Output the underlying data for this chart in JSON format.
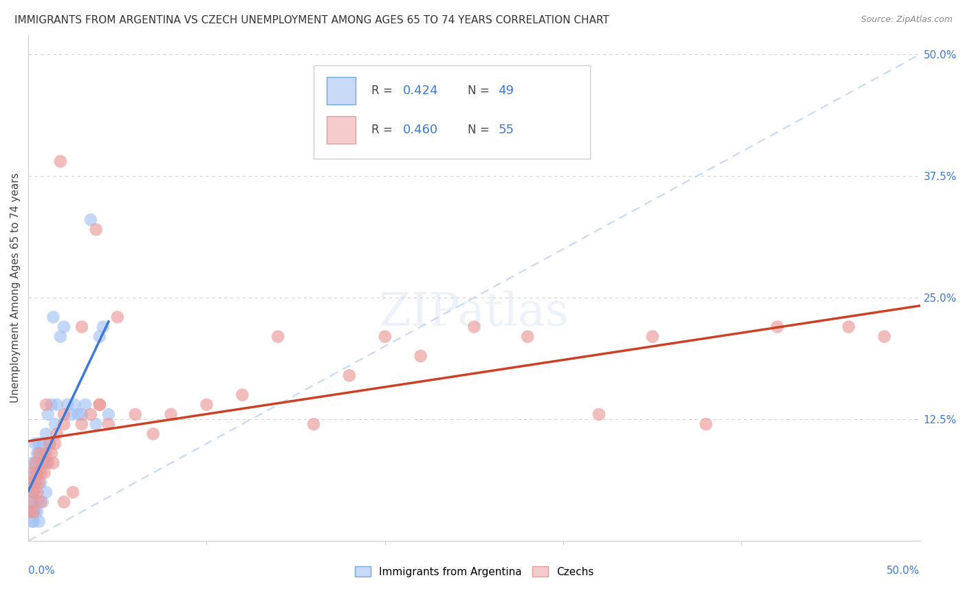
{
  "title": "IMMIGRANTS FROM ARGENTINA VS CZECH UNEMPLOYMENT AMONG AGES 65 TO 74 YEARS CORRELATION CHART",
  "source": "Source: ZipAtlas.com",
  "ylabel": "Unemployment Among Ages 65 to 74 years",
  "legend_label1": "Immigrants from Argentina",
  "legend_label2": "Czechs",
  "blue_dot_color": "#a4c2f4",
  "pink_dot_color": "#ea9999",
  "blue_line_color": "#3c78d8",
  "pink_line_color": "#cc4125",
  "text_blue": "#3c78d8",
  "diag_color": "#b7cef5",
  "grid_color": "#cccccc",
  "arg_x": [
    0.001,
    0.001,
    0.002,
    0.002,
    0.002,
    0.003,
    0.003,
    0.003,
    0.004,
    0.004,
    0.004,
    0.005,
    0.005,
    0.005,
    0.006,
    0.006,
    0.007,
    0.007,
    0.008,
    0.008,
    0.009,
    0.01,
    0.01,
    0.011,
    0.012,
    0.013,
    0.014,
    0.015,
    0.016,
    0.018,
    0.02,
    0.022,
    0.024,
    0.026,
    0.028,
    0.03,
    0.032,
    0.035,
    0.038,
    0.04,
    0.042,
    0.045,
    0.002,
    0.003,
    0.004,
    0.005,
    0.006,
    0.008,
    0.01
  ],
  "arg_y": [
    0.03,
    0.05,
    0.04,
    0.06,
    0.08,
    0.05,
    0.07,
    0.03,
    0.06,
    0.08,
    0.1,
    0.07,
    0.09,
    0.04,
    0.08,
    0.1,
    0.09,
    0.06,
    0.1,
    0.08,
    0.09,
    0.11,
    0.08,
    0.13,
    0.1,
    0.14,
    0.23,
    0.12,
    0.14,
    0.21,
    0.22,
    0.14,
    0.13,
    0.14,
    0.13,
    0.13,
    0.14,
    0.33,
    0.12,
    0.21,
    0.22,
    0.13,
    0.02,
    0.02,
    0.03,
    0.03,
    0.02,
    0.04,
    0.05
  ],
  "czk_x": [
    0.001,
    0.001,
    0.002,
    0.002,
    0.003,
    0.003,
    0.004,
    0.004,
    0.005,
    0.005,
    0.006,
    0.006,
    0.007,
    0.007,
    0.008,
    0.009,
    0.01,
    0.011,
    0.012,
    0.013,
    0.014,
    0.015,
    0.016,
    0.018,
    0.02,
    0.025,
    0.03,
    0.035,
    0.04,
    0.045,
    0.05,
    0.06,
    0.07,
    0.08,
    0.1,
    0.12,
    0.14,
    0.16,
    0.18,
    0.2,
    0.22,
    0.25,
    0.28,
    0.32,
    0.35,
    0.38,
    0.42,
    0.46,
    0.48,
    0.01,
    0.02,
    0.03,
    0.038,
    0.04,
    0.02
  ],
  "czk_y": [
    0.03,
    0.06,
    0.04,
    0.07,
    0.05,
    0.03,
    0.06,
    0.08,
    0.05,
    0.07,
    0.06,
    0.09,
    0.07,
    0.04,
    0.08,
    0.07,
    0.09,
    0.08,
    0.1,
    0.09,
    0.08,
    0.1,
    0.11,
    0.39,
    0.12,
    0.05,
    0.12,
    0.13,
    0.14,
    0.12,
    0.23,
    0.13,
    0.11,
    0.13,
    0.14,
    0.15,
    0.21,
    0.12,
    0.17,
    0.21,
    0.19,
    0.22,
    0.21,
    0.13,
    0.21,
    0.12,
    0.22,
    0.22,
    0.21,
    0.14,
    0.13,
    0.22,
    0.32,
    0.14,
    0.04
  ],
  "xlim": [
    0.0,
    0.5
  ],
  "ylim": [
    0.0,
    0.52
  ],
  "yticks": [
    0.125,
    0.25,
    0.375,
    0.5
  ],
  "yticklabels": [
    "12.5%",
    "25.0%",
    "37.5%",
    "50.0%"
  ],
  "arg_line_slope": 5.5,
  "arg_line_intercept": 0.01,
  "arg_line_xmax": 0.045,
  "czk_line_slope": 0.44,
  "czk_line_intercept": 0.03
}
